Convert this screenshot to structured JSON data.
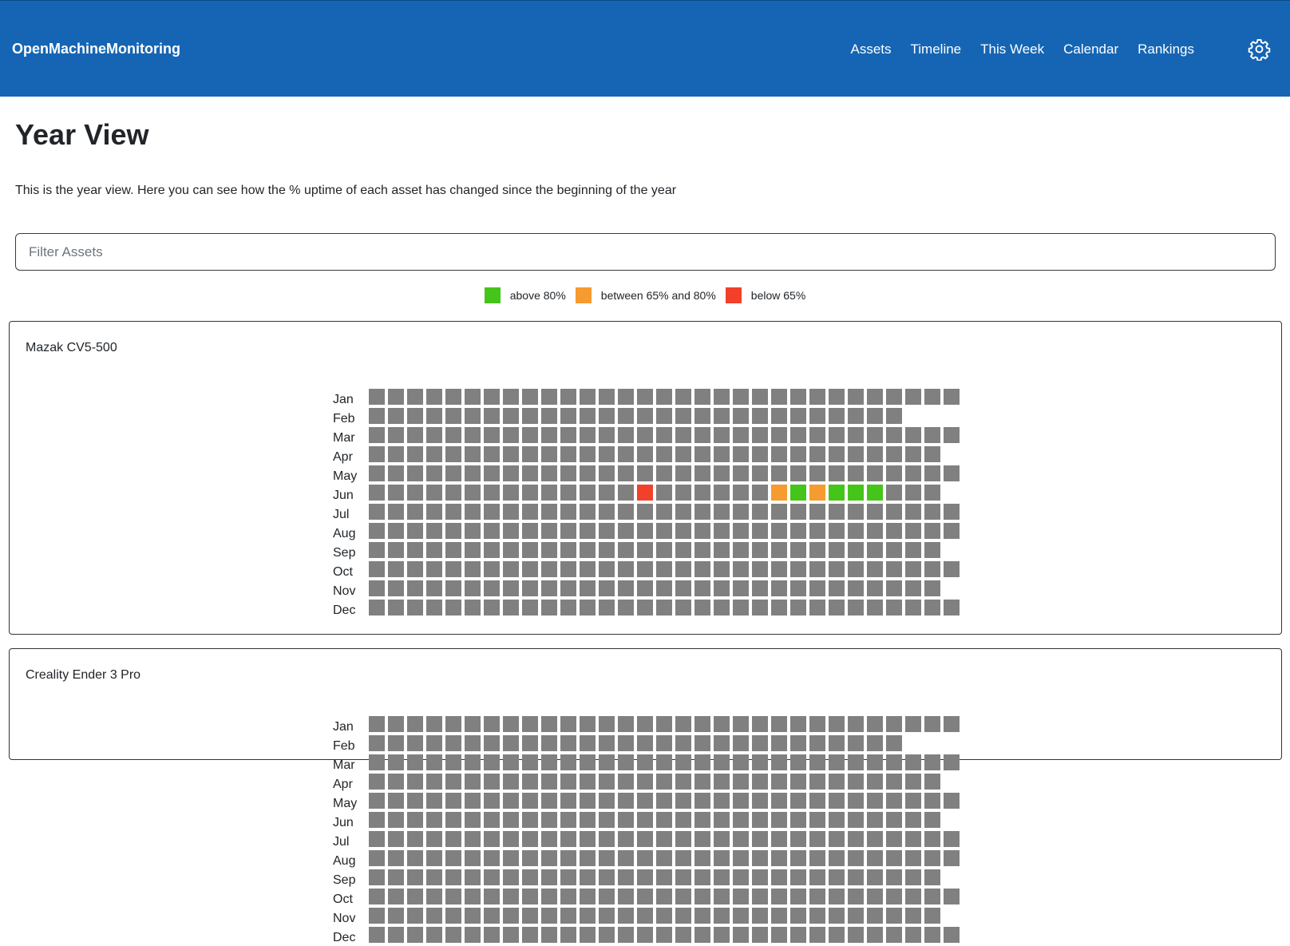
{
  "navbar": {
    "brand": "OpenMachineMonitoring",
    "links": [
      "Assets",
      "Timeline",
      "This Week",
      "Calendar",
      "Rankings"
    ],
    "settings_icon": "gear-icon"
  },
  "page": {
    "title": "Year View",
    "description": "This is the year view. Here you can see how the % uptime of each asset has changed since the beginning of the year"
  },
  "filter": {
    "placeholder": "Filter Assets",
    "value": ""
  },
  "legend": [
    {
      "label": "above 80%",
      "color": "#45c41a"
    },
    {
      "label": "between 65% and 80%",
      "color": "#f59b2f"
    },
    {
      "label": "below 65%",
      "color": "#f2412a"
    }
  ],
  "colors": {
    "no_data": "#808080",
    "green": "#45c41a",
    "orange": "#f59b2f",
    "red": "#f2412a"
  },
  "months": [
    "Jan",
    "Feb",
    "Mar",
    "Apr",
    "May",
    "Jun",
    "Jul",
    "Aug",
    "Sep",
    "Oct",
    "Nov",
    "Dec"
  ],
  "days_in_month": [
    31,
    28,
    31,
    30,
    31,
    30,
    31,
    31,
    30,
    31,
    30,
    31
  ],
  "assets": [
    {
      "name": "Mazak CV5-500",
      "marked_days": [
        {
          "month": 6,
          "day": 15,
          "status": "red"
        },
        {
          "month": 6,
          "day": 22,
          "status": "orange"
        },
        {
          "month": 6,
          "day": 23,
          "status": "green"
        },
        {
          "month": 6,
          "day": 24,
          "status": "orange"
        },
        {
          "month": 6,
          "day": 25,
          "status": "green"
        },
        {
          "month": 6,
          "day": 26,
          "status": "green"
        },
        {
          "month": 6,
          "day": 27,
          "status": "green"
        }
      ]
    },
    {
      "name": "Creality Ender 3 Pro",
      "marked_days": []
    }
  ]
}
